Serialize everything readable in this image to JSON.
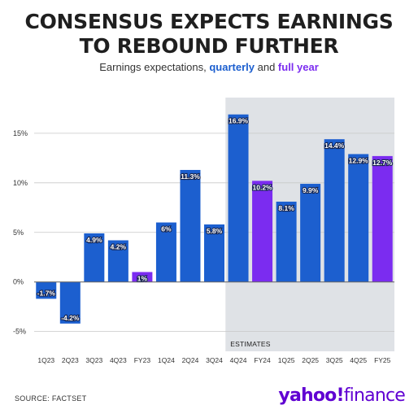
{
  "header": {
    "title_line1": "CONSENSUS EXPECTS EARNINGS",
    "title_line2": "TO REBOUND FURTHER",
    "subtitle_prefix": "Earnings expectations, ",
    "subtitle_quarterly": "quarterly",
    "subtitle_and": " and ",
    "subtitle_full_year": "full year"
  },
  "chart_data": {
    "type": "bar",
    "categories": [
      "1Q23",
      "2Q23",
      "3Q23",
      "4Q23",
      "FY23",
      "1Q24",
      "2Q24",
      "3Q24",
      "4Q24",
      "FY24",
      "1Q25",
      "2Q25",
      "3Q25",
      "4Q25",
      "FY25"
    ],
    "values": [
      -1.7,
      -4.2,
      4.9,
      4.2,
      1,
      6,
      11.3,
      5.8,
      16.9,
      10.2,
      8.1,
      9.9,
      14.4,
      12.9,
      12.7
    ],
    "labels": [
      "-1.7%",
      "-4.2%",
      "4.9%",
      "4.2%",
      "1%",
      "6%",
      "11.3%",
      "5.8%",
      "16.9%",
      "10.2%",
      "8.1%",
      "9.9%",
      "14.4%",
      "12.9%",
      "12.7%"
    ],
    "kinds": [
      "quarterly",
      "quarterly",
      "quarterly",
      "quarterly",
      "full_year",
      "quarterly",
      "quarterly",
      "quarterly",
      "quarterly",
      "full_year",
      "quarterly",
      "quarterly",
      "quarterly",
      "quarterly",
      "full_year"
    ],
    "y_ticks": [
      -5,
      0,
      5,
      10,
      15
    ],
    "y_tick_labels": [
      "-5%",
      "0%",
      "5%",
      "10%",
      "15%"
    ],
    "ylim": [
      -7,
      18.6
    ],
    "estimates_label": "ESTIMATES",
    "estimates_start_category": "4Q24",
    "colors": {
      "quarterly": "#1c5fcf",
      "full_year": "#7b2cf0",
      "estimates_band": "#dfe2e6",
      "grid": "#c8c8c8"
    },
    "grid": true
  },
  "footer": {
    "source": "SOURCE: FACTSET",
    "logo_main": "yahoo!",
    "logo_sub": "finance"
  }
}
